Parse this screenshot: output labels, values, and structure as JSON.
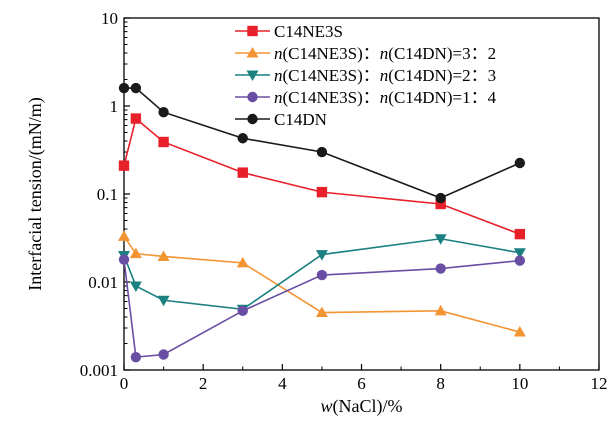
{
  "chart_data": {
    "type": "line",
    "xlabel_parts": [
      {
        "text": "w",
        "italic": true
      },
      {
        "text": "(NaCl)/%",
        "italic": false
      }
    ],
    "ylabel": "Interfacial tension/(mN/m)",
    "xlim": [
      0,
      12
    ],
    "ylim": [
      0.001,
      10
    ],
    "yscale": "log",
    "x_ticks": [
      "0",
      "2",
      "4",
      "6",
      "8",
      "10",
      "12"
    ],
    "y_ticks": [
      "0.001",
      "0.01",
      "0.1",
      "1",
      "10"
    ],
    "grid": false,
    "legend_position": "top-right",
    "series": [
      {
        "name_parts": [
          {
            "text": "C14NE3S",
            "italic": false
          }
        ],
        "color": "#e8202a",
        "marker": "square",
        "x": [
          0,
          0.3,
          1,
          3,
          5,
          8,
          10
        ],
        "y": [
          0.21,
          0.72,
          0.39,
          0.175,
          0.105,
          0.077,
          0.035
        ]
      },
      {
        "name_parts": [
          {
            "text": "n",
            "italic": true
          },
          {
            "text": "(C14NE3S)：",
            "italic": false
          },
          {
            "text": "n",
            "italic": true
          },
          {
            "text": "(C14DN)=3：2",
            "italic": false
          }
        ],
        "color": "#f39433",
        "marker": "triangle-up",
        "x": [
          0,
          0.3,
          1,
          3,
          5,
          8,
          10
        ],
        "y": [
          0.033,
          0.021,
          0.0195,
          0.0165,
          0.0045,
          0.0047,
          0.0027
        ]
      },
      {
        "name_parts": [
          {
            "text": "n",
            "italic": true
          },
          {
            "text": "(C14NE3S)：",
            "italic": false
          },
          {
            "text": "n",
            "italic": true
          },
          {
            "text": "(C14DN)=2：3",
            "italic": false
          }
        ],
        "color": "#1a8080",
        "marker": "triangle-down",
        "x": [
          0,
          0.3,
          1,
          3,
          5,
          8,
          10
        ],
        "y": [
          0.02,
          0.009,
          0.0062,
          0.0049,
          0.0205,
          0.031,
          0.0215
        ]
      },
      {
        "name_parts": [
          {
            "text": "n",
            "italic": true
          },
          {
            "text": "(C14NE3S)：",
            "italic": false
          },
          {
            "text": "n",
            "italic": true
          },
          {
            "text": "(C14DN)=1：4",
            "italic": false
          }
        ],
        "color": "#6a4ea3",
        "marker": "circle",
        "x": [
          0,
          0.3,
          1,
          3,
          5,
          8,
          10
        ],
        "y": [
          0.018,
          0.0014,
          0.0015,
          0.0047,
          0.012,
          0.0142,
          0.0175
        ]
      },
      {
        "name_parts": [
          {
            "text": "C14DN",
            "italic": false
          }
        ],
        "color": "#1a1a1a",
        "marker": "circle",
        "x": [
          0,
          0.3,
          1,
          3,
          5,
          8,
          10
        ],
        "y": [
          1.6,
          1.6,
          0.85,
          0.43,
          0.3,
          0.09,
          0.225
        ]
      }
    ]
  }
}
